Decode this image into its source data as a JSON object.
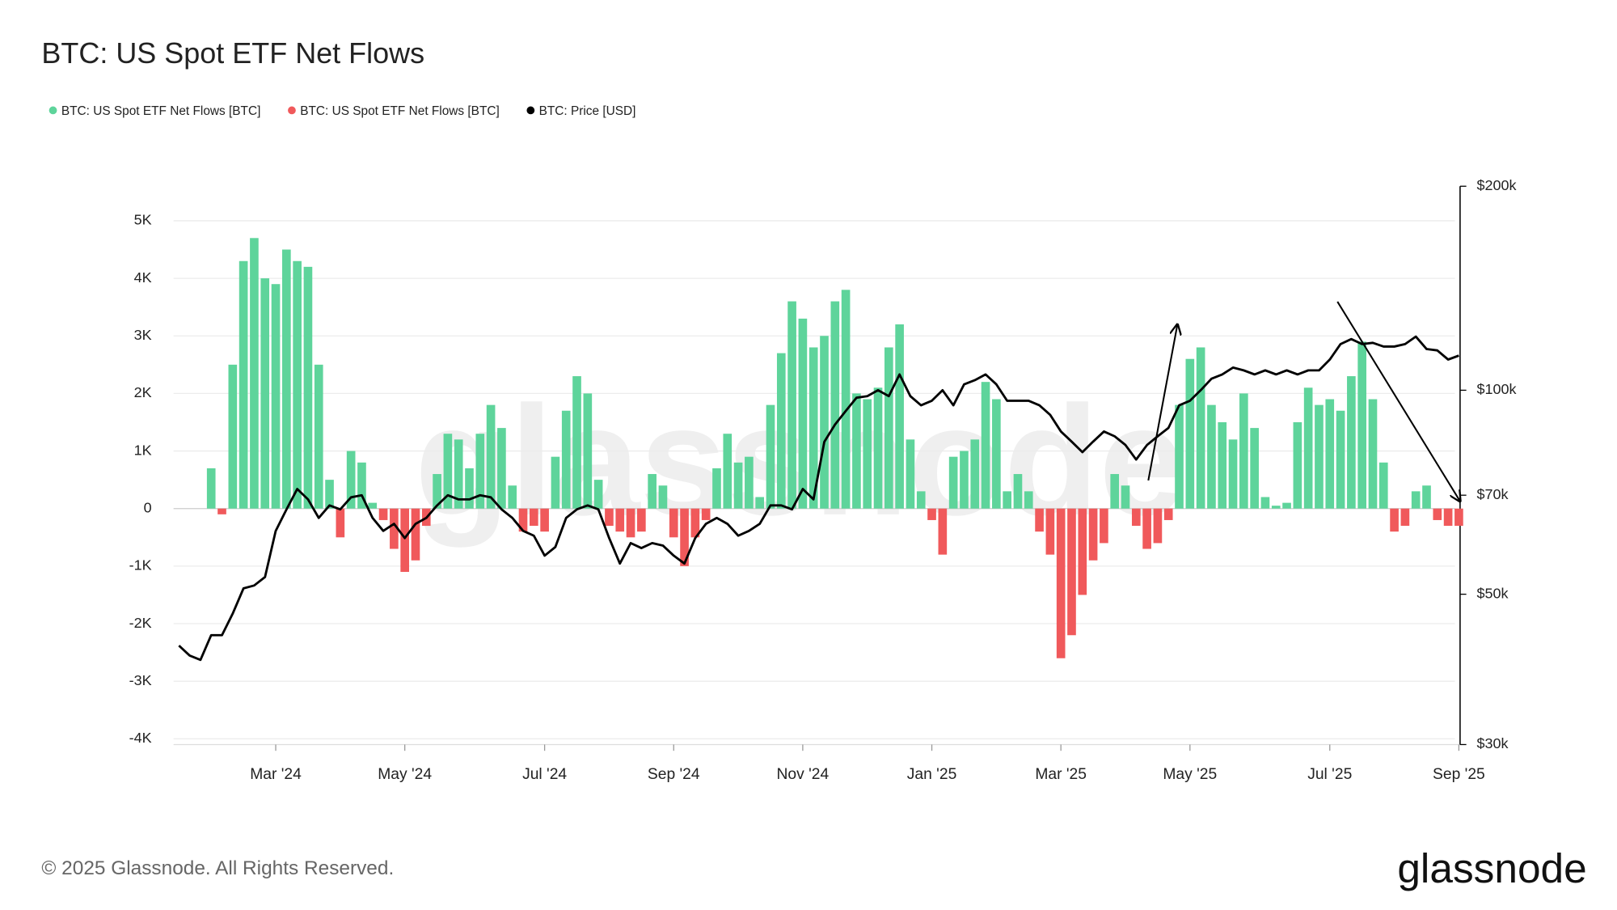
{
  "chart_data": {
    "type": "bar",
    "title": "BTC: US Spot ETF Net Flows",
    "footer": "© 2025 Glassnode. All Rights Reserved.",
    "logo": "glassnode",
    "watermark": "glassnode",
    "categories": [
      null,
      null,
      null,
      null,
      null,
      null,
      null,
      null,
      null,
      "Mar '24",
      null,
      null,
      null,
      null,
      null,
      null,
      null,
      null,
      null,
      null,
      null,
      "May '24",
      null,
      null,
      null,
      null,
      null,
      null,
      null,
      null,
      null,
      null,
      null,
      null,
      "Jul '24",
      null,
      null,
      null,
      null,
      null,
      null,
      null,
      null,
      null,
      null,
      null,
      "Sep '24",
      null,
      null,
      null,
      null,
      null,
      null,
      null,
      null,
      null,
      null,
      null,
      "Nov '24",
      null,
      null,
      null,
      null,
      null,
      null,
      null,
      null,
      null,
      null,
      null,
      "Jan '25",
      null,
      null,
      null,
      null,
      null,
      null,
      null,
      null,
      null,
      null,
      null,
      "Mar '25",
      null,
      null,
      null,
      null,
      null,
      null,
      null,
      null,
      null,
      null,
      null,
      "May '25",
      null,
      null,
      null,
      null,
      null,
      null,
      null,
      null,
      null,
      null,
      null,
      null,
      "Jul '25",
      null,
      null,
      null,
      null,
      null,
      null,
      null,
      null,
      null,
      null,
      null,
      "Sep '25"
    ],
    "series": [
      {
        "name": "BTC: US Spot ETF Net Flows [BTC]",
        "color": "#5ed49b",
        "values": [
          null,
          null,
          null,
          700,
          null,
          2500,
          4300,
          4700,
          4000,
          3900,
          4500,
          4300,
          4200,
          2500,
          500,
          null,
          1000,
          800,
          100,
          null,
          null,
          null,
          null,
          null,
          600,
          1300,
          1200,
          700,
          1300,
          1800,
          1400,
          400,
          null,
          null,
          null,
          900,
          1700,
          2300,
          2000,
          500,
          null,
          null,
          null,
          null,
          600,
          400,
          null,
          null,
          null,
          null,
          700,
          1300,
          800,
          900,
          200,
          1800,
          2700,
          3600,
          3300,
          2800,
          3000,
          3600,
          3800,
          2000,
          1900,
          2100,
          2800,
          3200,
          1200,
          300,
          null,
          null,
          900,
          1000,
          1200,
          2200,
          1900,
          300,
          600,
          300,
          null,
          null,
          null,
          null,
          null,
          null,
          null,
          600,
          400,
          null,
          null,
          null,
          null,
          1800,
          2600,
          2800,
          1800,
          1500,
          1200,
          2000,
          1400,
          200,
          50,
          100,
          1500,
          2100,
          1800,
          1900,
          1700,
          2300,
          2900,
          1900,
          800,
          null,
          null,
          300,
          400,
          null,
          null,
          null
        ]
      },
      {
        "name": "BTC: US Spot ETF Net Flows [BTC]",
        "color": "#f0595b",
        "values": [
          null,
          null,
          null,
          null,
          -100,
          null,
          null,
          null,
          null,
          null,
          null,
          null,
          null,
          null,
          null,
          -500,
          null,
          null,
          null,
          -200,
          -700,
          -1100,
          -900,
          -300,
          null,
          null,
          null,
          null,
          null,
          null,
          null,
          null,
          -400,
          -300,
          -400,
          null,
          null,
          null,
          null,
          null,
          -300,
          -400,
          -500,
          -400,
          null,
          null,
          -500,
          -1000,
          -500,
          -200,
          null,
          null,
          null,
          null,
          null,
          null,
          null,
          null,
          null,
          null,
          null,
          null,
          null,
          null,
          null,
          null,
          null,
          null,
          null,
          null,
          -200,
          -800,
          null,
          null,
          null,
          null,
          null,
          null,
          null,
          null,
          -400,
          -800,
          -2600,
          -2200,
          -1500,
          -900,
          -600,
          null,
          null,
          -300,
          -700,
          -600,
          -200,
          null,
          null,
          null,
          null,
          null,
          null,
          null,
          null,
          null,
          null,
          null,
          null,
          null,
          null,
          null,
          null,
          null,
          null,
          null,
          null,
          -400,
          -300,
          null,
          null,
          -200,
          -300,
          -300
        ]
      },
      {
        "name": "BTC: Price [USD]",
        "color": "#000000",
        "type": "line",
        "axis": "y2",
        "values": [
          42000,
          40600,
          40000,
          43500,
          43500,
          46800,
          51000,
          51500,
          53000,
          62000,
          66700,
          71500,
          69000,
          64800,
          67600,
          66700,
          69500,
          70000,
          64800,
          62000,
          63500,
          60500,
          63500,
          64800,
          67600,
          70000,
          69000,
          69000,
          70000,
          69500,
          66700,
          64800,
          62000,
          61000,
          57000,
          58700,
          64800,
          66700,
          67600,
          66700,
          60500,
          55500,
          59500,
          58500,
          59500,
          59000,
          57000,
          55500,
          60500,
          63500,
          64800,
          63500,
          61000,
          62000,
          63500,
          67600,
          67600,
          66700,
          71500,
          69000,
          83900,
          89000,
          93200,
          97500,
          98000,
          100000,
          98000,
          105500,
          98000,
          95000,
          96500,
          100000,
          95000,
          102000,
          103500,
          105500,
          102000,
          96500,
          96500,
          96500,
          95000,
          92000,
          86900,
          84000,
          81000,
          84000,
          86900,
          85500,
          83000,
          79000,
          83000,
          85500,
          88000,
          95000,
          96500,
          100000,
          104000,
          105500,
          108000,
          107000,
          105500,
          107000,
          105500,
          107000,
          105500,
          107000,
          107000,
          111000,
          117000,
          119000,
          117000,
          117500,
          116000,
          116000,
          117000,
          120000,
          115000,
          114500,
          111000,
          112500
        ]
      }
    ],
    "ylim": [
      -4100,
      5600
    ],
    "yticks": [
      {
        "value": -4000,
        "label": "-4K"
      },
      {
        "value": -3000,
        "label": "-3K"
      },
      {
        "value": -2000,
        "label": "-2K"
      },
      {
        "value": -1000,
        "label": "-1K"
      },
      0,
      {
        "value": 1000,
        "label": "1K"
      },
      {
        "value": 2000,
        "label": "2K"
      },
      {
        "value": 3000,
        "label": "3K"
      },
      {
        "value": 4000,
        "label": "4K"
      },
      {
        "value": 5000,
        "label": "5K"
      }
    ],
    "y2lim": [
      30000,
      200000
    ],
    "y2scale": "log",
    "y2ticks": [
      {
        "value": 30000,
        "label": "$30k"
      },
      {
        "value": 50000,
        "label": "$50k"
      },
      {
        "value": 70000,
        "label": "$70k"
      },
      {
        "value": 100000,
        "label": "$100k"
      },
      {
        "value": 200000,
        "label": "$200k"
      }
    ],
    "grid": true
  }
}
